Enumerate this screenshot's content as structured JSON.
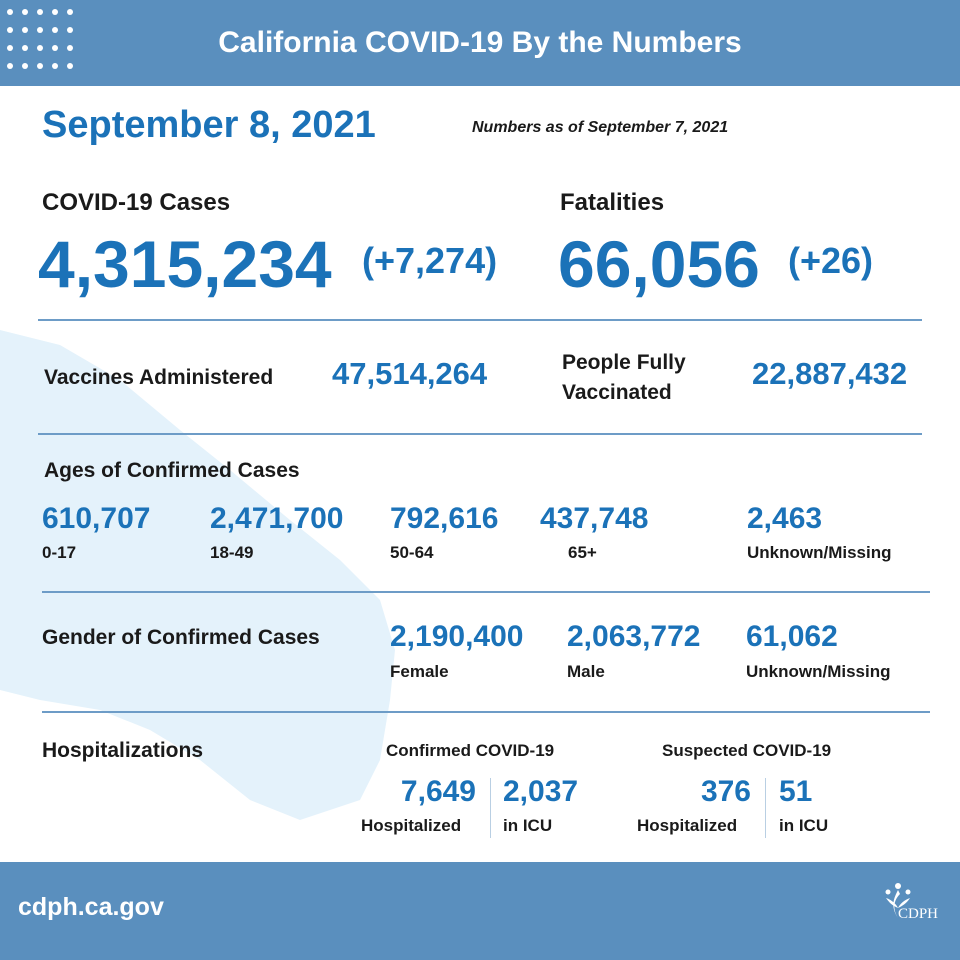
{
  "header": {
    "title": "California COVID-19 By the Numbers"
  },
  "date": "September 8, 2021",
  "as_of": "Numbers as of September 7, 2021",
  "cases": {
    "label": "COVID-19 Cases",
    "value": "4,315,234",
    "change": "(+7,274)"
  },
  "fatalities": {
    "label": "Fatalities",
    "value": "66,056",
    "change": "(+26)"
  },
  "vaccines": {
    "administered": {
      "label": "Vaccines Administered",
      "value": "47,514,264"
    },
    "fully_vaccinated": {
      "label": "People Fully Vaccinated",
      "value": "22,887,432"
    }
  },
  "ages": {
    "title": "Ages of Confirmed Cases",
    "items": [
      {
        "value": "610,707",
        "label": "0-17"
      },
      {
        "value": "2,471,700",
        "label": "18-49"
      },
      {
        "value": "792,616",
        "label": "50-64"
      },
      {
        "value": "437,748",
        "label": "65+"
      },
      {
        "value": "2,463",
        "label": "Unknown/Missing"
      }
    ]
  },
  "gender": {
    "title": "Gender of Confirmed Cases",
    "items": [
      {
        "value": "2,190,400",
        "label": "Female"
      },
      {
        "value": "2,063,772",
        "label": "Male"
      },
      {
        "value": "61,062",
        "label": "Unknown/Missing"
      }
    ]
  },
  "hospitalizations": {
    "title": "Hospitalizations",
    "confirmed": {
      "title": "Confirmed COVID-19",
      "hospitalized": {
        "value": "7,649",
        "label": "Hospitalized"
      },
      "icu": {
        "value": "2,037",
        "label": "in ICU"
      }
    },
    "suspected": {
      "title": "Suspected COVID-19",
      "hospitalized": {
        "value": "376",
        "label": "Hospitalized"
      },
      "icu": {
        "value": "51",
        "label": "in ICU"
      }
    }
  },
  "footer": {
    "url": "cdph.ca.gov",
    "logo": "CDPH"
  }
}
